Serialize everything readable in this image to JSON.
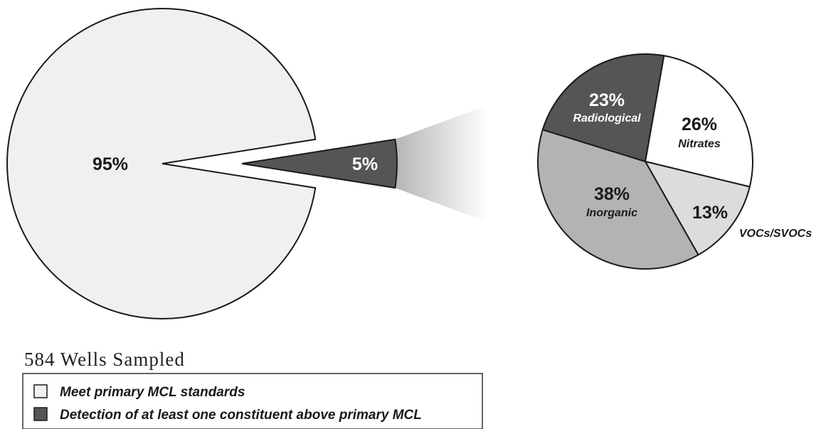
{
  "chart_data": [
    {
      "type": "pie",
      "slices": [
        {
          "label": "Meet primary MCL standards",
          "value": 95,
          "display": "95%",
          "color": "#f0f0f0"
        },
        {
          "label": "Detection of at least one constituent above primary MCL",
          "value": 5,
          "display": "5%",
          "color": "#555555"
        }
      ]
    },
    {
      "type": "pie",
      "slices": [
        {
          "name": "Nitrates",
          "value": 26,
          "display": "26%",
          "color": "#ffffff"
        },
        {
          "name": "VOCs/SVOCs",
          "value": 13,
          "display": "13%",
          "color": "#dcdcdc"
        },
        {
          "name": "Inorganic",
          "value": 38,
          "display": "38%",
          "color": "#b3b3b3"
        },
        {
          "name": "Radiological",
          "value": 23,
          "display": "23%",
          "color": "#555555"
        }
      ]
    }
  ],
  "caption": "584 Wells Sampled",
  "legend": [
    {
      "label": "Meet primary MCL standards",
      "color": "#f0f0f0"
    },
    {
      "label": "Detection of at least one constituent above primary MCL",
      "color": "#555555"
    }
  ],
  "colors": {
    "outline": "#1a1a1a",
    "light_fill": "#f0f0f0",
    "dark_fill": "#555555"
  }
}
